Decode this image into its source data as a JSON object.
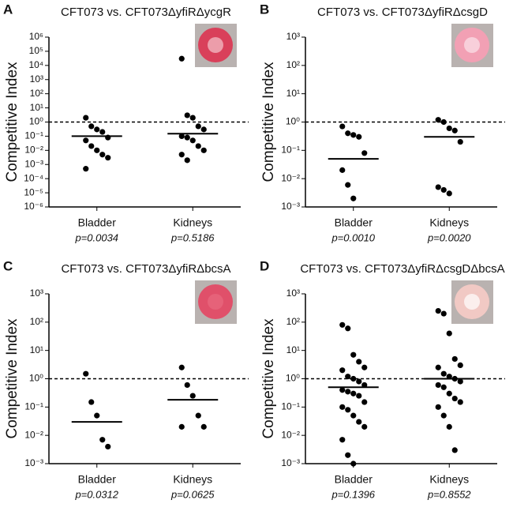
{
  "chart_data": [
    {
      "type": "strip",
      "panel": "A",
      "title": "CFT073 vs. CFT073ΔyfiRΔycgR",
      "ylabel": "Competitive Index",
      "categories": [
        "Bladder",
        "Kidneys"
      ],
      "annotations": [
        "p=0.0034",
        "p=0.5186"
      ],
      "values": [
        [
          2,
          0.5,
          0.3,
          0.2,
          0.08,
          0.05,
          0.02,
          0.01,
          0.005,
          0.003,
          0.0005
        ],
        [
          30000,
          3,
          2,
          0.5,
          0.3,
          0.1,
          0.08,
          0.05,
          0.02,
          0.01,
          0.005,
          0.002
        ]
      ],
      "medians": [
        0.1,
        0.15
      ],
      "reference_line": 1,
      "log_scale": true,
      "color": "#000000",
      "ylim": [
        1e-06,
        1000000
      ],
      "yticks": [
        {
          "value": 1000000,
          "label": "10⁶"
        },
        {
          "value": 100000,
          "label": "10⁵"
        },
        {
          "value": 10000,
          "label": "10⁴"
        },
        {
          "value": 1000,
          "label": "10³"
        },
        {
          "value": 100,
          "label": "10²"
        },
        {
          "value": 10,
          "label": "10¹"
        },
        {
          "value": 1,
          "label": "10⁰"
        },
        {
          "value": 0.1,
          "label": "10⁻¹"
        },
        {
          "value": 0.01,
          "label": "10⁻²"
        },
        {
          "value": 0.001,
          "label": "10⁻³"
        },
        {
          "value": 0.0001,
          "label": "10⁻⁴"
        },
        {
          "value": 1e-05,
          "label": "10⁻⁵"
        },
        {
          "value": 1e-06,
          "label": "10⁻⁶"
        }
      ]
    },
    {
      "type": "strip",
      "panel": "B",
      "title": "CFT073 vs. CFT073ΔyfiRΔcsgD",
      "ylabel": "Competitive Index",
      "categories": [
        "Bladder",
        "Kidneys"
      ],
      "annotations": [
        "p=0.0010",
        "p=0.0020"
      ],
      "values": [
        [
          0.7,
          0.4,
          0.35,
          0.3,
          0.08,
          0.02,
          0.006,
          0.002
        ],
        [
          1.2,
          1.0,
          0.6,
          0.5,
          0.2,
          0.005,
          0.004,
          0.003
        ]
      ],
      "medians": [
        0.05,
        0.3
      ],
      "reference_line": 1,
      "log_scale": true,
      "color": "#000000",
      "ylim": [
        0.001,
        1000
      ],
      "yticks": [
        {
          "value": 1000,
          "label": "10³"
        },
        {
          "value": 100,
          "label": "10²"
        },
        {
          "value": 10,
          "label": "10¹"
        },
        {
          "value": 1,
          "label": "10⁰"
        },
        {
          "value": 0.1,
          "label": "10⁻¹"
        },
        {
          "value": 0.01,
          "label": "10⁻²"
        },
        {
          "value": 0.001,
          "label": "10⁻³"
        }
      ]
    },
    {
      "type": "strip",
      "panel": "C",
      "title": "CFT073 vs. CFT073ΔyfiRΔbcsA",
      "ylabel": "Competitive Index",
      "categories": [
        "Bladder",
        "Kidneys"
      ],
      "annotations": [
        "p=0.0312",
        "p=0.0625"
      ],
      "values": [
        [
          1.5,
          0.15,
          0.05,
          0.007,
          0.004
        ],
        [
          2.5,
          0.6,
          0.25,
          0.05,
          0.02,
          0.02
        ]
      ],
      "medians": [
        0.03,
        0.18
      ],
      "reference_line": 1,
      "log_scale": true,
      "color": "#000000",
      "ylim": [
        0.001,
        1000
      ],
      "yticks": [
        {
          "value": 1000,
          "label": "10³"
        },
        {
          "value": 100,
          "label": "10²"
        },
        {
          "value": 10,
          "label": "10¹"
        },
        {
          "value": 1,
          "label": "10⁰"
        },
        {
          "value": 0.1,
          "label": "10⁻¹"
        },
        {
          "value": 0.01,
          "label": "10⁻²"
        },
        {
          "value": 0.001,
          "label": "10⁻³"
        }
      ]
    },
    {
      "type": "strip",
      "panel": "D",
      "title": "CFT073 vs. CFT073ΔyfiRΔcsgDΔbcsA",
      "ylabel": "Competitive Index",
      "categories": [
        "Bladder",
        "Kidneys"
      ],
      "annotations": [
        "p=0.1396",
        "p=0.8552"
      ],
      "values": [
        [
          80,
          60,
          7,
          4,
          2.5,
          2,
          1.2,
          1,
          0.8,
          0.6,
          0.4,
          0.35,
          0.3,
          0.25,
          0.15,
          0.1,
          0.08,
          0.05,
          0.03,
          0.02,
          0.007,
          0.002,
          0.001
        ],
        [
          250,
          200,
          40,
          5,
          3,
          2.5,
          1.5,
          1.2,
          1,
          0.8,
          0.6,
          0.5,
          0.3,
          0.2,
          0.15,
          0.1,
          0.05,
          0.02,
          0.003
        ]
      ],
      "medians": [
        0.5,
        1
      ],
      "reference_line": 1,
      "log_scale": true,
      "color": "#000000",
      "ylim": [
        0.001,
        1000
      ],
      "yticks": [
        {
          "value": 1000,
          "label": "10³"
        },
        {
          "value": 100,
          "label": "10²"
        },
        {
          "value": 10,
          "label": "10¹"
        },
        {
          "value": 1,
          "label": "10⁰"
        },
        {
          "value": 0.1,
          "label": "10⁻¹"
        },
        {
          "value": 0.01,
          "label": "10⁻²"
        },
        {
          "value": 0.001,
          "label": "10⁻³"
        }
      ]
    }
  ]
}
